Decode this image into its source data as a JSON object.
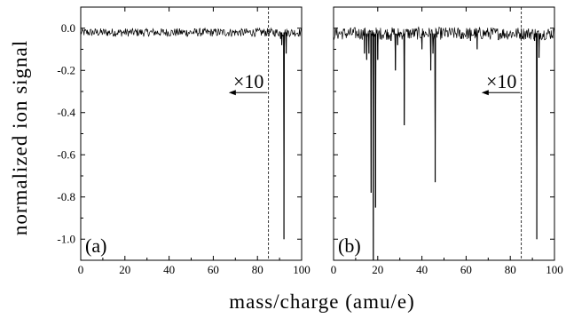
{
  "chart_data": {
    "type": "line",
    "ylabel": "normalized ion signal",
    "xlabel": "mass/charge (amu/e)",
    "shared_y_axis": true,
    "ylim": [
      -1.1,
      0.1
    ],
    "yticks": [
      0.0,
      -0.2,
      -0.4,
      -0.6,
      -0.8,
      -1.0
    ],
    "ytick_labels": [
      "0.0",
      "-0.2",
      "-0.4",
      "-0.6",
      "-0.8",
      "-1.0"
    ],
    "grid": false,
    "legend": "none",
    "panels": [
      {
        "label": "(a)",
        "xlim": [
          0,
          100
        ],
        "xticks": [
          0,
          20,
          40,
          60,
          80,
          100
        ],
        "xtick_labels": [
          "0",
          "20",
          "40",
          "60",
          "80",
          "100"
        ],
        "noise_level": -0.02,
        "noise_amplitude": 0.02,
        "peaks": [
          {
            "x": 90.5,
            "y": -0.05
          },
          {
            "x": 91.0,
            "y": -0.08
          },
          {
            "x": 92.0,
            "y": -1.0
          },
          {
            "x": 93.0,
            "y": -0.12
          }
        ],
        "dashed_line_x": 85,
        "annotation": {
          "text": "×10",
          "x": 76,
          "y": -0.25,
          "arrow_from_x": 84.5,
          "arrow_to_x": 67,
          "arrow_y": -0.305
        }
      },
      {
        "label": "(b)",
        "xlim": [
          0,
          100
        ],
        "xticks": [
          0,
          20,
          40,
          60,
          80,
          100
        ],
        "xtick_labels": [
          "0",
          "20",
          "40",
          "60",
          "80",
          "100"
        ],
        "noise_level": -0.025,
        "noise_amplitude": 0.03,
        "peaks": [
          {
            "x": 14.0,
            "y": -0.12
          },
          {
            "x": 15.0,
            "y": -0.15
          },
          {
            "x": 16.0,
            "y": -0.12
          },
          {
            "x": 17.0,
            "y": -0.78
          },
          {
            "x": 18.0,
            "y": -1.1
          },
          {
            "x": 19.0,
            "y": -0.85
          },
          {
            "x": 20.0,
            "y": -0.15
          },
          {
            "x": 26.0,
            "y": -0.06
          },
          {
            "x": 28.0,
            "y": -0.2
          },
          {
            "x": 29.0,
            "y": -0.08
          },
          {
            "x": 32.0,
            "y": -0.46
          },
          {
            "x": 40.0,
            "y": -0.1
          },
          {
            "x": 44.0,
            "y": -0.2
          },
          {
            "x": 45.0,
            "y": -0.12
          },
          {
            "x": 46.0,
            "y": -0.73
          },
          {
            "x": 58.0,
            "y": -0.05
          },
          {
            "x": 62.0,
            "y": -0.06
          },
          {
            "x": 65.0,
            "y": -0.1
          },
          {
            "x": 91.0,
            "y": -0.06
          },
          {
            "x": 92.0,
            "y": -1.0
          },
          {
            "x": 93.0,
            "y": -0.14
          }
        ],
        "dashed_line_x": 85,
        "annotation": {
          "text": "×10",
          "x": 76,
          "y": -0.25,
          "arrow_from_x": 84.5,
          "arrow_to_x": 67,
          "arrow_y": -0.305
        }
      }
    ]
  }
}
